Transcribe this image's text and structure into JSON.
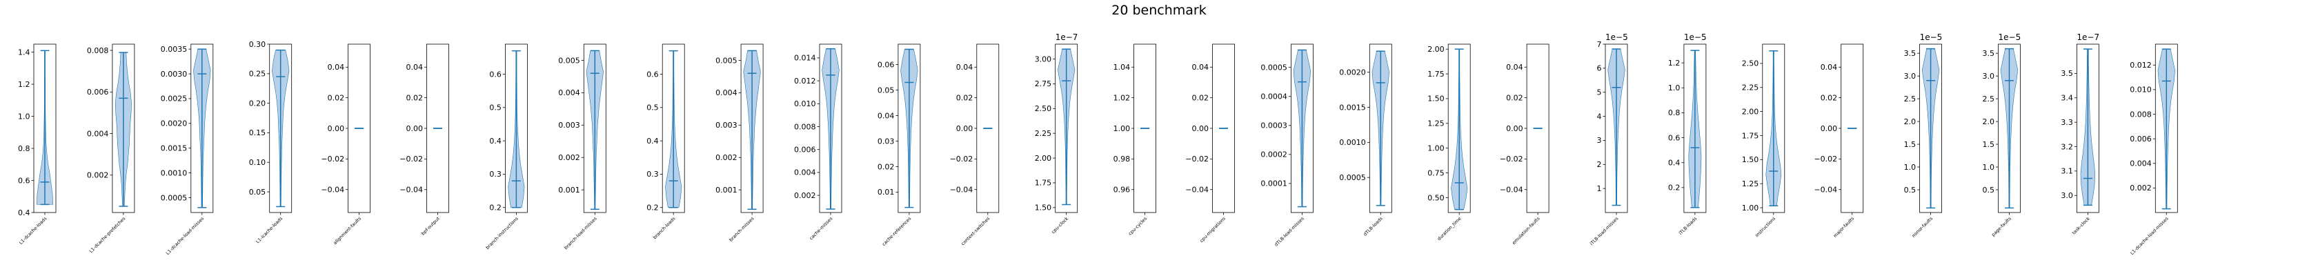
{
  "title": "20 benchmark",
  "colors": {
    "violin_fill": "#a8c8e4",
    "violin_edge": "#1f77b4",
    "line": "#1f77b4",
    "frame": "#000000"
  },
  "chart_data": [
    {
      "type": "violin",
      "title": "20 benchmark",
      "category": "L1-dcache-loads",
      "ylim": [
        0.4,
        1.45
      ],
      "yticks": [
        0.4,
        0.6,
        0.8,
        1.0,
        1.2,
        1.4
      ],
      "ytick_labels": [
        "0.4",
        "0.6",
        "0.8",
        "1.0",
        "1.2",
        "1.4"
      ],
      "min": 0.45,
      "max": 1.41,
      "median": 0.59,
      "density": [
        0.9,
        0.85,
        0.7,
        0.55,
        0.35,
        0.22,
        0.14,
        0.1,
        0.08,
        0.06,
        0.05,
        0.05,
        0.05,
        0.04,
        0.04,
        0.04
      ]
    },
    {
      "type": "violin",
      "category": "L1-dcache-prefetches",
      "ylim": [
        0.0002,
        0.0083
      ],
      "yticks": [
        0.002,
        0.004,
        0.006,
        0.008
      ],
      "ytick_labels": [
        "0.002",
        "0.004",
        "0.006",
        "0.008"
      ],
      "min": 0.0005,
      "max": 0.0079,
      "median": 0.0057,
      "density": [
        0.1,
        0.15,
        0.2,
        0.3,
        0.45,
        0.55,
        0.65,
        0.7,
        0.75,
        0.85,
        0.9,
        0.8,
        0.6,
        0.45,
        0.35,
        0.3
      ]
    },
    {
      "type": "violin",
      "category": "L1-dcache-load-misses",
      "ylim": [
        0.0002,
        0.0036
      ],
      "yticks": [
        0.0005,
        0.001,
        0.0015,
        0.002,
        0.0025,
        0.003,
        0.0035
      ],
      "ytick_labels": [
        "0.0005",
        "0.0010",
        "0.0015",
        "0.0020",
        "0.0025",
        "0.0030",
        "0.0035"
      ],
      "min": 0.0003,
      "max": 0.0035,
      "median": 0.003,
      "density": [
        0.06,
        0.07,
        0.08,
        0.1,
        0.12,
        0.15,
        0.2,
        0.25,
        0.3,
        0.38,
        0.5,
        0.65,
        0.85,
        0.95,
        0.7,
        0.45
      ]
    },
    {
      "type": "violin",
      "category": "L1-icache-loads",
      "ylim": [
        0.015,
        0.3
      ],
      "yticks": [
        0.05,
        0.1,
        0.15,
        0.2,
        0.25,
        0.3
      ],
      "ytick_labels": [
        "0.05",
        "0.10",
        "0.15",
        "0.20",
        "0.25",
        "0.30"
      ],
      "min": 0.025,
      "max": 0.29,
      "median": 0.245,
      "density": [
        0.05,
        0.06,
        0.07,
        0.08,
        0.1,
        0.12,
        0.15,
        0.2,
        0.25,
        0.3,
        0.4,
        0.55,
        0.75,
        0.95,
        0.8,
        0.55
      ]
    },
    {
      "type": "violin",
      "category": "alignment-faults",
      "ylim": [
        -0.055,
        0.055
      ],
      "yticks": [
        -0.04,
        -0.02,
        0.0,
        0.02,
        0.04
      ],
      "ytick_labels": [
        "−0.04",
        "−0.02",
        "0.00",
        "0.02",
        "0.04"
      ],
      "min": 0,
      "max": 0,
      "median": 0,
      "density": []
    },
    {
      "type": "violin",
      "category": "bpf-output",
      "ylim": [
        -0.055,
        0.055
      ],
      "yticks": [
        -0.04,
        -0.02,
        0.0,
        0.02,
        0.04
      ],
      "ytick_labels": [
        "−0.04",
        "−0.02",
        "0.00",
        "0.02",
        "0.04"
      ],
      "min": 0,
      "max": 0,
      "median": 0,
      "density": []
    },
    {
      "type": "violin",
      "category": "branch-instructions",
      "ylim": [
        0.185,
        0.69
      ],
      "yticks": [
        0.2,
        0.3,
        0.4,
        0.5,
        0.6
      ],
      "ytick_labels": [
        "0.2",
        "0.3",
        "0.4",
        "0.5",
        "0.6"
      ],
      "min": 0.2,
      "max": 0.67,
      "median": 0.28,
      "density": [
        0.6,
        0.8,
        0.9,
        0.7,
        0.5,
        0.35,
        0.25,
        0.18,
        0.13,
        0.1,
        0.08,
        0.07,
        0.06,
        0.05,
        0.05,
        0.05
      ]
    },
    {
      "type": "violin",
      "category": "branch-load-misses",
      "ylim": [
        0.0003,
        0.0055
      ],
      "yticks": [
        0.001,
        0.002,
        0.003,
        0.004,
        0.005
      ],
      "ytick_labels": [
        "0.001",
        "0.002",
        "0.003",
        "0.004",
        "0.005"
      ],
      "min": 0.0004,
      "max": 0.0053,
      "median": 0.0046,
      "density": [
        0.05,
        0.06,
        0.08,
        0.1,
        0.12,
        0.15,
        0.2,
        0.25,
        0.3,
        0.4,
        0.5,
        0.65,
        0.8,
        0.95,
        0.7,
        0.5
      ]
    },
    {
      "type": "violin",
      "category": "branch-loads",
      "ylim": [
        0.185,
        0.69
      ],
      "yticks": [
        0.2,
        0.3,
        0.4,
        0.5,
        0.6
      ],
      "ytick_labels": [
        "0.2",
        "0.3",
        "0.4",
        "0.5",
        "0.6"
      ],
      "min": 0.2,
      "max": 0.67,
      "median": 0.28,
      "density": [
        0.6,
        0.8,
        0.9,
        0.7,
        0.5,
        0.35,
        0.25,
        0.18,
        0.13,
        0.1,
        0.08,
        0.07,
        0.06,
        0.05,
        0.05,
        0.05
      ]
    },
    {
      "type": "violin",
      "category": "branch-misses",
      "ylim": [
        0.0003,
        0.0055
      ],
      "yticks": [
        0.001,
        0.002,
        0.003,
        0.004,
        0.005
      ],
      "ytick_labels": [
        "0.001",
        "0.002",
        "0.003",
        "0.004",
        "0.005"
      ],
      "min": 0.0004,
      "max": 0.0053,
      "median": 0.0046,
      "density": [
        0.05,
        0.06,
        0.08,
        0.1,
        0.12,
        0.15,
        0.2,
        0.25,
        0.3,
        0.4,
        0.5,
        0.65,
        0.8,
        0.95,
        0.7,
        0.5
      ]
    },
    {
      "type": "violin",
      "category": "cache-misses",
      "ylim": [
        0.0005,
        0.0152
      ],
      "yticks": [
        0.002,
        0.004,
        0.006,
        0.008,
        0.01,
        0.012,
        0.014
      ],
      "ytick_labels": [
        "0.002",
        "0.004",
        "0.006",
        "0.008",
        "0.010",
        "0.012",
        "0.014"
      ],
      "min": 0.0008,
      "max": 0.0148,
      "median": 0.0125,
      "density": [
        0.05,
        0.06,
        0.07,
        0.09,
        0.11,
        0.14,
        0.18,
        0.22,
        0.28,
        0.35,
        0.45,
        0.6,
        0.8,
        0.95,
        0.75,
        0.5
      ]
    },
    {
      "type": "violin",
      "category": "cache-references",
      "ylim": [
        0.002,
        0.068
      ],
      "yticks": [
        0.01,
        0.02,
        0.03,
        0.04,
        0.05,
        0.06
      ],
      "ytick_labels": [
        "0.01",
        "0.02",
        "0.03",
        "0.04",
        "0.05",
        "0.06"
      ],
      "min": 0.004,
      "max": 0.066,
      "median": 0.053,
      "density": [
        0.05,
        0.06,
        0.07,
        0.08,
        0.1,
        0.12,
        0.16,
        0.2,
        0.26,
        0.34,
        0.45,
        0.6,
        0.8,
        0.95,
        0.75,
        0.5
      ]
    },
    {
      "type": "violin",
      "category": "context-switches",
      "ylim": [
        -0.055,
        0.055
      ],
      "yticks": [
        -0.04,
        -0.02,
        0.0,
        0.02,
        0.04
      ],
      "ytick_labels": [
        "−0.04",
        "−0.02",
        "0.00",
        "0.02",
        "0.04"
      ],
      "min": 0,
      "max": 0,
      "median": 0,
      "density": []
    },
    {
      "type": "violin",
      "category": "cpu-clock",
      "offset_label": "1e−7",
      "ylim": [
        1.45,
        3.15
      ],
      "yticks": [
        1.5,
        1.75,
        2.0,
        2.25,
        2.5,
        2.75,
        3.0
      ],
      "ytick_labels": [
        "1.50",
        "1.75",
        "2.00",
        "2.25",
        "2.50",
        "2.75",
        "3.00"
      ],
      "min": 1.53,
      "max": 3.1,
      "median": 2.78,
      "density": [
        0.05,
        0.05,
        0.06,
        0.07,
        0.08,
        0.1,
        0.13,
        0.17,
        0.22,
        0.3,
        0.4,
        0.55,
        0.75,
        0.95,
        0.7,
        0.45
      ]
    },
    {
      "type": "violin",
      "category": "cpu-cycles",
      "ylim": [
        0.945,
        1.055
      ],
      "yticks": [
        0.96,
        0.98,
        1.0,
        1.02,
        1.04
      ],
      "ytick_labels": [
        "0.96",
        "0.98",
        "1.00",
        "1.02",
        "1.04"
      ],
      "min": 1.0,
      "max": 1.0,
      "median": 1.0,
      "density": []
    },
    {
      "type": "violin",
      "category": "cpu-migrations",
      "ylim": [
        -0.055,
        0.055
      ],
      "yticks": [
        -0.04,
        -0.02,
        0.0,
        0.02,
        0.04
      ],
      "ytick_labels": [
        "−0.04",
        "−0.02",
        "0.00",
        "0.02",
        "0.04"
      ],
      "min": 0,
      "max": 0,
      "median": 0,
      "density": []
    },
    {
      "type": "violin",
      "category": "dTLB-load-misses",
      "ylim": [
        0.0,
        0.00058
      ],
      "yticks": [
        0.0001,
        0.0002,
        0.0003,
        0.0004,
        0.0005
      ],
      "ytick_labels": [
        "0.0001",
        "0.0002",
        "0.0003",
        "0.0004",
        "0.0005"
      ],
      "min": 2e-05,
      "max": 0.00056,
      "median": 0.00045,
      "density": [
        0.05,
        0.06,
        0.07,
        0.09,
        0.11,
        0.14,
        0.18,
        0.22,
        0.28,
        0.36,
        0.48,
        0.65,
        0.85,
        0.95,
        0.7,
        0.45
      ]
    },
    {
      "type": "violin",
      "category": "dTLB-loads",
      "ylim": [
        0.0,
        0.0024
      ],
      "yticks": [
        0.0005,
        0.001,
        0.0015,
        0.002
      ],
      "ytick_labels": [
        "0.0005",
        "0.0010",
        "0.0015",
        "0.0020"
      ],
      "min": 0.0001,
      "max": 0.0023,
      "median": 0.00185,
      "density": [
        0.05,
        0.06,
        0.07,
        0.09,
        0.11,
        0.14,
        0.18,
        0.22,
        0.28,
        0.36,
        0.48,
        0.65,
        0.85,
        0.95,
        0.7,
        0.45
      ]
    },
    {
      "type": "violin",
      "category": "duration_time",
      "ylim": [
        0.35,
        2.05
      ],
      "yticks": [
        0.5,
        0.75,
        1.0,
        1.25,
        1.5,
        1.75,
        2.0
      ],
      "ytick_labels": [
        "0.50",
        "0.75",
        "1.00",
        "1.25",
        "1.50",
        "1.75",
        "2.00"
      ],
      "min": 0.38,
      "max": 2.0,
      "median": 0.65,
      "density": [
        0.5,
        0.75,
        0.9,
        0.7,
        0.5,
        0.35,
        0.25,
        0.18,
        0.13,
        0.1,
        0.08,
        0.07,
        0.06,
        0.05,
        0.05,
        0.05
      ]
    },
    {
      "type": "violin",
      "category": "emulation-faults",
      "ylim": [
        -0.055,
        0.055
      ],
      "yticks": [
        -0.04,
        -0.02,
        0.0,
        0.02,
        0.04
      ],
      "ytick_labels": [
        "−0.04",
        "−0.02",
        "0.00",
        "0.02",
        "0.04"
      ],
      "min": 0,
      "max": 0,
      "median": 0,
      "density": []
    },
    {
      "type": "violin",
      "category": "iTLB-load-misses",
      "offset_label": "1e−5",
      "ylim": [
        0.0,
        7.0
      ],
      "yticks": [
        1,
        2,
        3,
        4,
        5,
        6,
        7
      ],
      "ytick_labels": [
        "1",
        "2",
        "3",
        "4",
        "5",
        "6",
        "7"
      ],
      "min": 0.3,
      "max": 6.8,
      "median": 5.2,
      "density": [
        0.05,
        0.05,
        0.06,
        0.07,
        0.09,
        0.12,
        0.15,
        0.2,
        0.26,
        0.34,
        0.45,
        0.6,
        0.8,
        0.95,
        0.7,
        0.45
      ]
    },
    {
      "type": "violin",
      "category": "iTLB-loads",
      "offset_label": "1e−5",
      "ylim": [
        0.0,
        1.35
      ],
      "yticks": [
        0.2,
        0.4,
        0.6,
        0.8,
        1.0,
        1.2
      ],
      "ytick_labels": [
        "0.2",
        "0.4",
        "0.6",
        "0.8",
        "1.0",
        "1.2"
      ],
      "min": 0.04,
      "max": 1.3,
      "median": 0.52,
      "density": [
        0.35,
        0.45,
        0.55,
        0.62,
        0.68,
        0.7,
        0.62,
        0.52,
        0.42,
        0.32,
        0.24,
        0.18,
        0.13,
        0.1,
        0.08,
        0.06
      ]
    },
    {
      "type": "violin",
      "category": "instructions",
      "ylim": [
        0.95,
        2.7
      ],
      "yticks": [
        1.0,
        1.25,
        1.5,
        1.75,
        2.0,
        2.25,
        2.5
      ],
      "ytick_labels": [
        "1.00",
        "1.25",
        "1.50",
        "1.75",
        "2.00",
        "2.25",
        "2.50"
      ],
      "min": 1.02,
      "max": 2.63,
      "median": 1.38,
      "density": [
        0.35,
        0.5,
        0.7,
        0.85,
        0.75,
        0.55,
        0.38,
        0.26,
        0.18,
        0.13,
        0.1,
        0.08,
        0.07,
        0.06,
        0.05,
        0.05
      ]
    },
    {
      "type": "violin",
      "category": "major-faults",
      "ylim": [
        -0.055,
        0.055
      ],
      "yticks": [
        -0.04,
        -0.02,
        0.0,
        0.02,
        0.04
      ],
      "ytick_labels": [
        "−0.04",
        "−0.02",
        "0.00",
        "0.02",
        "0.04"
      ],
      "min": 0,
      "max": 0,
      "median": 0,
      "density": []
    },
    {
      "type": "violin",
      "category": "minor-faults",
      "offset_label": "1e−5",
      "ylim": [
        0.0,
        3.7
      ],
      "yticks": [
        0.5,
        1.0,
        1.5,
        2.0,
        2.5,
        3.0,
        3.5
      ],
      "ytick_labels": [
        "0.5",
        "1.0",
        "1.5",
        "2.0",
        "2.5",
        "3.0",
        "3.5"
      ],
      "min": 0.1,
      "max": 3.6,
      "median": 2.9,
      "density": [
        0.05,
        0.05,
        0.06,
        0.07,
        0.09,
        0.12,
        0.15,
        0.2,
        0.26,
        0.34,
        0.45,
        0.6,
        0.8,
        0.95,
        0.7,
        0.45
      ]
    },
    {
      "type": "violin",
      "category": "page-faults",
      "offset_label": "1e−5",
      "ylim": [
        0.0,
        3.7
      ],
      "yticks": [
        0.5,
        1.0,
        1.5,
        2.0,
        2.5,
        3.0,
        3.5
      ],
      "ytick_labels": [
        "0.5",
        "1.0",
        "1.5",
        "2.0",
        "2.5",
        "3.0",
        "3.5"
      ],
      "min": 0.1,
      "max": 3.6,
      "median": 2.9,
      "density": [
        0.05,
        0.05,
        0.06,
        0.07,
        0.09,
        0.12,
        0.15,
        0.2,
        0.26,
        0.34,
        0.45,
        0.6,
        0.8,
        0.95,
        0.7,
        0.45
      ]
    },
    {
      "type": "violin",
      "category": "task-clock",
      "offset_label": "1e−7",
      "ylim": [
        2.93,
        3.62
      ],
      "yticks": [
        3.0,
        3.1,
        3.2,
        3.3,
        3.4,
        3.5
      ],
      "ytick_labels": [
        "3.0",
        "3.1",
        "3.2",
        "3.3",
        "3.4",
        "3.5"
      ],
      "min": 2.96,
      "max": 3.6,
      "median": 3.07,
      "density": [
        0.4,
        0.6,
        0.75,
        0.8,
        0.7,
        0.55,
        0.42,
        0.32,
        0.25,
        0.2,
        0.16,
        0.13,
        0.11,
        0.09,
        0.08,
        0.07
      ]
    },
    {
      "type": "violin",
      "category": "L1-dcache-load-misses",
      "ylim": [
        0.0,
        0.0137
      ],
      "yticks": [
        0.002,
        0.004,
        0.006,
        0.008,
        0.01,
        0.012
      ],
      "ytick_labels": [
        "0.002",
        "0.004",
        "0.006",
        "0.008",
        "0.010",
        "0.012"
      ],
      "min": 0.0003,
      "max": 0.0133,
      "median": 0.0107,
      "density": [
        0.05,
        0.06,
        0.07,
        0.09,
        0.11,
        0.14,
        0.18,
        0.22,
        0.28,
        0.36,
        0.48,
        0.65,
        0.85,
        0.95,
        0.7,
        0.45
      ]
    }
  ]
}
